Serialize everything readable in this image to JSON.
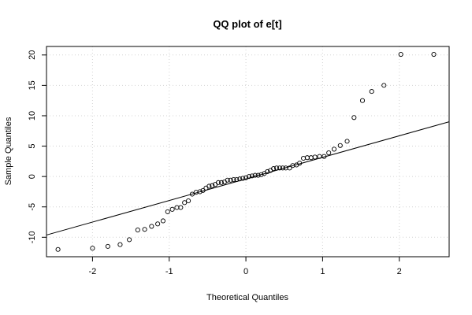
{
  "chart_data": {
    "type": "scatter",
    "title": "QQ plot of e[t]",
    "xlabel": "Theoretical Quantiles",
    "ylabel": "Sample Quantiles",
    "xlim": [
      -2.6,
      2.65
    ],
    "ylim": [
      -13.2,
      21.4
    ],
    "x_ticks": [
      -2,
      -1,
      0,
      1,
      2
    ],
    "y_ticks": [
      -10,
      -5,
      0,
      5,
      10,
      15,
      20
    ],
    "grid": true,
    "legend": "none",
    "reference_line": {
      "intercept": -0.4,
      "slope": 3.55
    },
    "points": [
      [
        -2.45,
        -12.0
      ],
      [
        -2.0,
        -11.8
      ],
      [
        -1.8,
        -11.5
      ],
      [
        -1.64,
        -11.2
      ],
      [
        -1.52,
        -10.4
      ],
      [
        -1.41,
        -8.8
      ],
      [
        -1.32,
        -8.7
      ],
      [
        -1.23,
        -8.2
      ],
      [
        -1.15,
        -7.8
      ],
      [
        -1.08,
        -7.3
      ],
      [
        -1.02,
        -5.8
      ],
      [
        -0.96,
        -5.4
      ],
      [
        -0.9,
        -5.1
      ],
      [
        -0.85,
        -5.1
      ],
      [
        -0.8,
        -4.3
      ],
      [
        -0.75,
        -4.0
      ],
      [
        -0.7,
        -2.9
      ],
      [
        -0.65,
        -2.6
      ],
      [
        -0.6,
        -2.5
      ],
      [
        -0.56,
        -2.3
      ],
      [
        -0.52,
        -1.9
      ],
      [
        -0.48,
        -1.6
      ],
      [
        -0.44,
        -1.5
      ],
      [
        -0.4,
        -1.3
      ],
      [
        -0.36,
        -1.0
      ],
      [
        -0.32,
        -1.0
      ],
      [
        -0.28,
        -0.9
      ],
      [
        -0.24,
        -0.6
      ],
      [
        -0.2,
        -0.6
      ],
      [
        -0.16,
        -0.5
      ],
      [
        -0.12,
        -0.5
      ],
      [
        -0.08,
        -0.4
      ],
      [
        -0.04,
        -0.3
      ],
      [
        0.0,
        -0.2
      ],
      [
        0.04,
        0.0
      ],
      [
        0.08,
        0.1
      ],
      [
        0.12,
        0.2
      ],
      [
        0.16,
        0.2
      ],
      [
        0.2,
        0.3
      ],
      [
        0.24,
        0.5
      ],
      [
        0.28,
        0.8
      ],
      [
        0.32,
        1.0
      ],
      [
        0.36,
        1.3
      ],
      [
        0.4,
        1.4
      ],
      [
        0.44,
        1.4
      ],
      [
        0.48,
        1.4
      ],
      [
        0.52,
        1.4
      ],
      [
        0.57,
        1.4
      ],
      [
        0.61,
        1.8
      ],
      [
        0.66,
        1.9
      ],
      [
        0.7,
        2.2
      ],
      [
        0.75,
        3.0
      ],
      [
        0.8,
        3.1
      ],
      [
        0.85,
        3.1
      ],
      [
        0.9,
        3.2
      ],
      [
        0.96,
        3.3
      ],
      [
        1.02,
        3.3
      ],
      [
        1.08,
        3.9
      ],
      [
        1.15,
        4.5
      ],
      [
        1.23,
        5.1
      ],
      [
        1.32,
        5.8
      ],
      [
        1.41,
        9.7
      ],
      [
        1.52,
        12.5
      ],
      [
        1.64,
        14.0
      ],
      [
        1.8,
        15.0
      ],
      [
        2.02,
        20.1
      ],
      [
        2.45,
        20.1
      ]
    ]
  }
}
